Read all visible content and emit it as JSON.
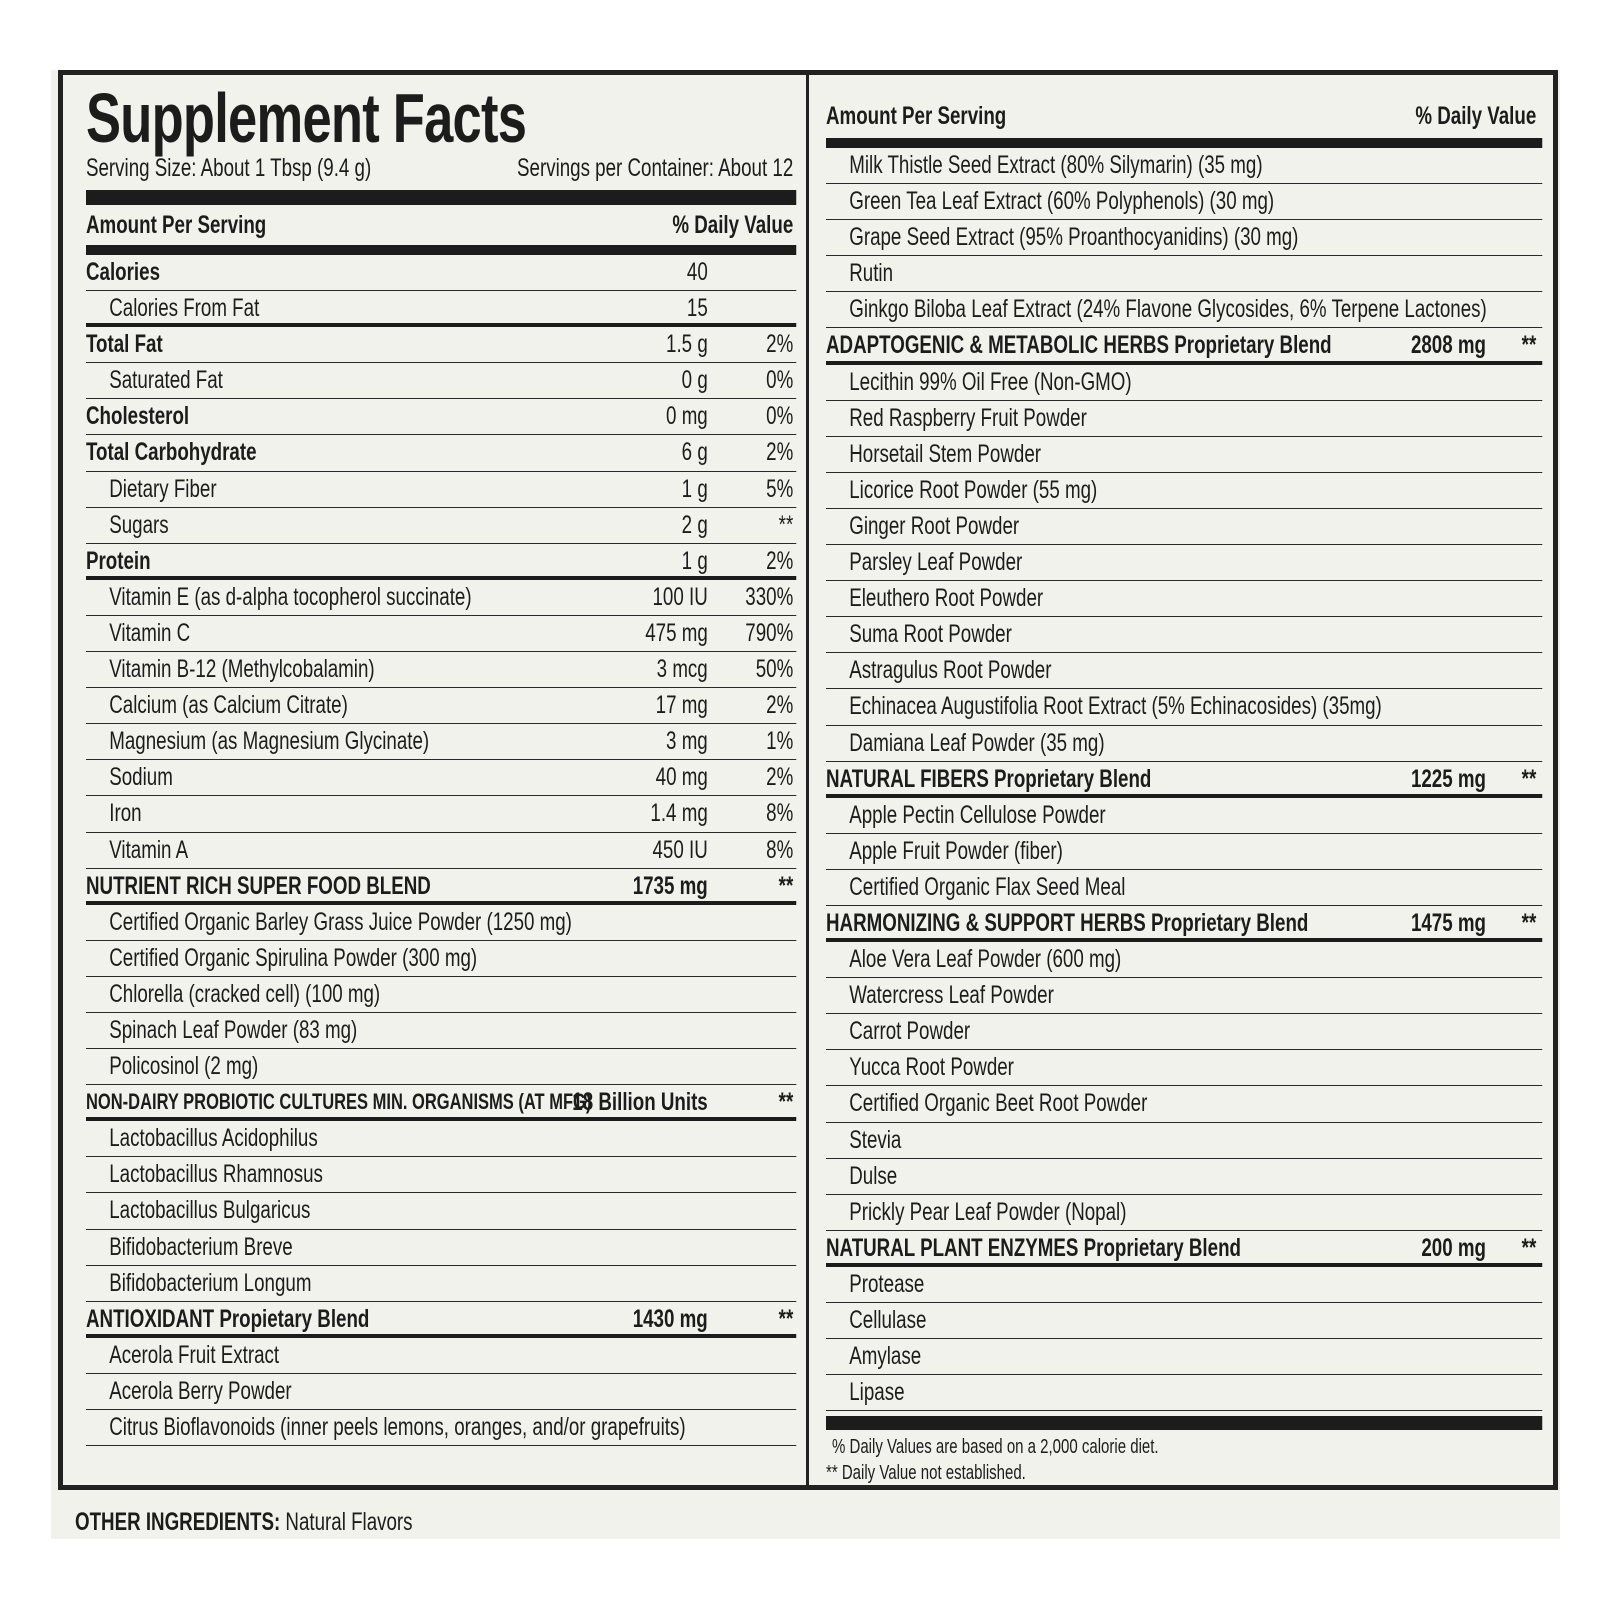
{
  "title": "Supplement Facts",
  "serving_size": "Serving Size: About 1 Tbsp (9.4 g)",
  "servings_per_container": "Servings per Container: About 12",
  "header": {
    "amount": "Amount Per Serving",
    "dv": "% Daily Value"
  },
  "left_rows": [
    {
      "kind": "bold",
      "label": "Calories",
      "amount": "40",
      "dv": ""
    },
    {
      "kind": "indent",
      "label": "Calories From Fat",
      "amount": "15",
      "dv": ""
    },
    {
      "kind": "bold",
      "label": "Total Fat",
      "amount": "1.5 g",
      "dv": "2%"
    },
    {
      "kind": "indent",
      "label": "Saturated Fat",
      "amount": "0 g",
      "dv": "0%"
    },
    {
      "kind": "bold",
      "label": "Cholesterol",
      "amount": "0 mg",
      "dv": "0%"
    },
    {
      "kind": "bold",
      "label": "Total Carbohydrate",
      "amount": "6 g",
      "dv": "2%"
    },
    {
      "kind": "indent",
      "label": "Dietary Fiber",
      "amount": "1 g",
      "dv": "5%"
    },
    {
      "kind": "indent",
      "label": "Sugars",
      "amount": "2 g",
      "dv": "**"
    },
    {
      "kind": "bold",
      "label": "Protein",
      "amount": "1 g",
      "dv": "2%"
    },
    {
      "kind": "indent",
      "label": "Vitamin E (as d-alpha tocopherol succinate)",
      "amount": "100 IU",
      "dv": "330%"
    },
    {
      "kind": "indent",
      "label": "Vitamin C",
      "amount": "475 mg",
      "dv": "790%"
    },
    {
      "kind": "indent",
      "label": "Vitamin B-12 (Methylcobalamin)",
      "amount": "3 mcg",
      "dv": "50%"
    },
    {
      "kind": "indent",
      "label": "Calcium (as Calcium Citrate)",
      "amount": "17 mg",
      "dv": "2%"
    },
    {
      "kind": "indent",
      "label": "Magnesium (as Magnesium Glycinate)",
      "amount": "3 mg",
      "dv": "1%"
    },
    {
      "kind": "indent",
      "label": "Sodium",
      "amount": "40 mg",
      "dv": "2%"
    },
    {
      "kind": "indent",
      "label": "Iron",
      "amount": "1.4 mg",
      "dv": "8%"
    },
    {
      "kind": "indent",
      "label": "Vitamin A",
      "amount": "450 IU",
      "dv": "8%"
    },
    {
      "kind": "blend",
      "label": "NUTRIENT RICH SUPER FOOD BLEND",
      "amount": "1735 mg",
      "dv": "**"
    },
    {
      "kind": "indent",
      "label": "Certified Organic Barley Grass Juice Powder (1250 mg)",
      "amount": "",
      "dv": ""
    },
    {
      "kind": "indent",
      "label": "Certified Organic Spirulina Powder (300 mg)",
      "amount": "",
      "dv": ""
    },
    {
      "kind": "indent",
      "label": "Chlorella (cracked cell) (100 mg)",
      "amount": "",
      "dv": ""
    },
    {
      "kind": "indent",
      "label": "Spinach Leaf Powder (83 mg)",
      "amount": "",
      "dv": ""
    },
    {
      "kind": "indent",
      "label": "Policosinol (2 mg)",
      "amount": "",
      "dv": ""
    },
    {
      "kind": "blend small",
      "label": "NON-DAIRY PROBIOTIC CULTURES MIN. ORGANISMS (AT MFG)",
      "amount": "18 Billion Units",
      "dv": "**"
    },
    {
      "kind": "indent",
      "label": "Lactobacillus Acidophilus",
      "amount": "",
      "dv": ""
    },
    {
      "kind": "indent",
      "label": "Lactobacillus Rhamnosus",
      "amount": "",
      "dv": ""
    },
    {
      "kind": "indent",
      "label": "Lactobacillus Bulgaricus",
      "amount": "",
      "dv": ""
    },
    {
      "kind": "indent",
      "label": "Bifidobacterium Breve",
      "amount": "",
      "dv": ""
    },
    {
      "kind": "indent",
      "label": "Bifidobacterium Longum",
      "amount": "",
      "dv": ""
    },
    {
      "kind": "blend",
      "label": "ANTIOXIDANT Propietary Blend",
      "amount": "1430 mg",
      "dv": "**"
    },
    {
      "kind": "indent",
      "label": "Acerola Fruit Extract",
      "amount": "",
      "dv": ""
    },
    {
      "kind": "indent",
      "label": "Acerola Berry Powder",
      "amount": "",
      "dv": ""
    },
    {
      "kind": "indent",
      "label": "Citrus Bioflavonoids (inner peels lemons, oranges, and/or grapefruits)",
      "amount": "",
      "dv": ""
    }
  ],
  "right_rows": [
    {
      "kind": "indent",
      "label": "Milk Thistle Seed Extract (80% Silymarin) (35 mg)",
      "amount": "",
      "dv": ""
    },
    {
      "kind": "indent",
      "label": "Green Tea Leaf Extract (60% Polyphenols) (30 mg)",
      "amount": "",
      "dv": ""
    },
    {
      "kind": "indent",
      "label": "Grape Seed Extract (95% Proanthocyanidins) (30 mg)",
      "amount": "",
      "dv": ""
    },
    {
      "kind": "indent",
      "label": "Rutin",
      "amount": "",
      "dv": ""
    },
    {
      "kind": "indent",
      "label": "Ginkgo Biloba Leaf Extract (24% Flavone Glycosides, 6% Terpene Lactones)",
      "amount": "",
      "dv": ""
    },
    {
      "kind": "blend",
      "label": "ADAPTOGENIC & METABOLIC HERBS Proprietary Blend",
      "amount": "2808 mg",
      "dv": "**"
    },
    {
      "kind": "indent",
      "label": "Lecithin 99% Oil Free (Non-GMO)",
      "amount": "",
      "dv": ""
    },
    {
      "kind": "indent",
      "label": "Red Raspberry Fruit Powder",
      "amount": "",
      "dv": ""
    },
    {
      "kind": "indent",
      "label": "Horsetail Stem Powder",
      "amount": "",
      "dv": ""
    },
    {
      "kind": "indent",
      "label": "Licorice Root Powder (55 mg)",
      "amount": "",
      "dv": ""
    },
    {
      "kind": "indent",
      "label": "Ginger Root Powder",
      "amount": "",
      "dv": ""
    },
    {
      "kind": "indent",
      "label": "Parsley Leaf Powder",
      "amount": "",
      "dv": ""
    },
    {
      "kind": "indent",
      "label": "Eleuthero Root Powder",
      "amount": "",
      "dv": ""
    },
    {
      "kind": "indent",
      "label": "Suma Root Powder",
      "amount": "",
      "dv": ""
    },
    {
      "kind": "indent",
      "label": "Astragulus Root Powder",
      "amount": "",
      "dv": ""
    },
    {
      "kind": "indent",
      "label": "Echinacea Augustifolia Root Extract (5% Echinacosides) (35mg)",
      "amount": "",
      "dv": ""
    },
    {
      "kind": "indent",
      "label": "Damiana Leaf Powder (35 mg)",
      "amount": "",
      "dv": ""
    },
    {
      "kind": "blend",
      "label": "NATURAL FIBERS Proprietary Blend",
      "amount": "1225 mg",
      "dv": "**"
    },
    {
      "kind": "indent",
      "label": "Apple Pectin Cellulose Powder",
      "amount": "",
      "dv": ""
    },
    {
      "kind": "indent",
      "label": "Apple Fruit Powder (fiber)",
      "amount": "",
      "dv": ""
    },
    {
      "kind": "indent",
      "label": "Certified Organic Flax Seed Meal",
      "amount": "",
      "dv": ""
    },
    {
      "kind": "blend",
      "label": "HARMONIZING & SUPPORT HERBS Proprietary Blend",
      "amount": "1475 mg",
      "dv": "**"
    },
    {
      "kind": "indent",
      "label": "Aloe Vera Leaf Powder (600 mg)",
      "amount": "",
      "dv": ""
    },
    {
      "kind": "indent",
      "label": "Watercress Leaf Powder",
      "amount": "",
      "dv": ""
    },
    {
      "kind": "indent",
      "label": "Carrot Powder",
      "amount": "",
      "dv": ""
    },
    {
      "kind": "indent",
      "label": "Yucca Root Powder",
      "amount": "",
      "dv": ""
    },
    {
      "kind": "indent",
      "label": "Certified Organic Beet Root Powder",
      "amount": "",
      "dv": ""
    },
    {
      "kind": "indent",
      "label": "Stevia",
      "amount": "",
      "dv": ""
    },
    {
      "kind": "indent",
      "label": "Dulse",
      "amount": "",
      "dv": ""
    },
    {
      "kind": "indent",
      "label": "Prickly Pear Leaf Powder (Nopal)",
      "amount": "",
      "dv": ""
    },
    {
      "kind": "blend",
      "label": "NATURAL PLANT ENZYMES Proprietary Blend",
      "amount": "200 mg",
      "dv": "**"
    },
    {
      "kind": "indent",
      "label": "Protease",
      "amount": "",
      "dv": ""
    },
    {
      "kind": "indent",
      "label": "Cellulase",
      "amount": "",
      "dv": ""
    },
    {
      "kind": "indent",
      "label": "Amylase",
      "amount": "",
      "dv": ""
    },
    {
      "kind": "indent",
      "label": "Lipase",
      "amount": "",
      "dv": ""
    }
  ],
  "footnotes": [
    "% Daily Values are based on a 2,000 calorie diet.",
    "** Daily Value not established."
  ],
  "other_ingredients": {
    "label": "OTHER INGREDIENTS:",
    "value": "Natural Flavors"
  }
}
